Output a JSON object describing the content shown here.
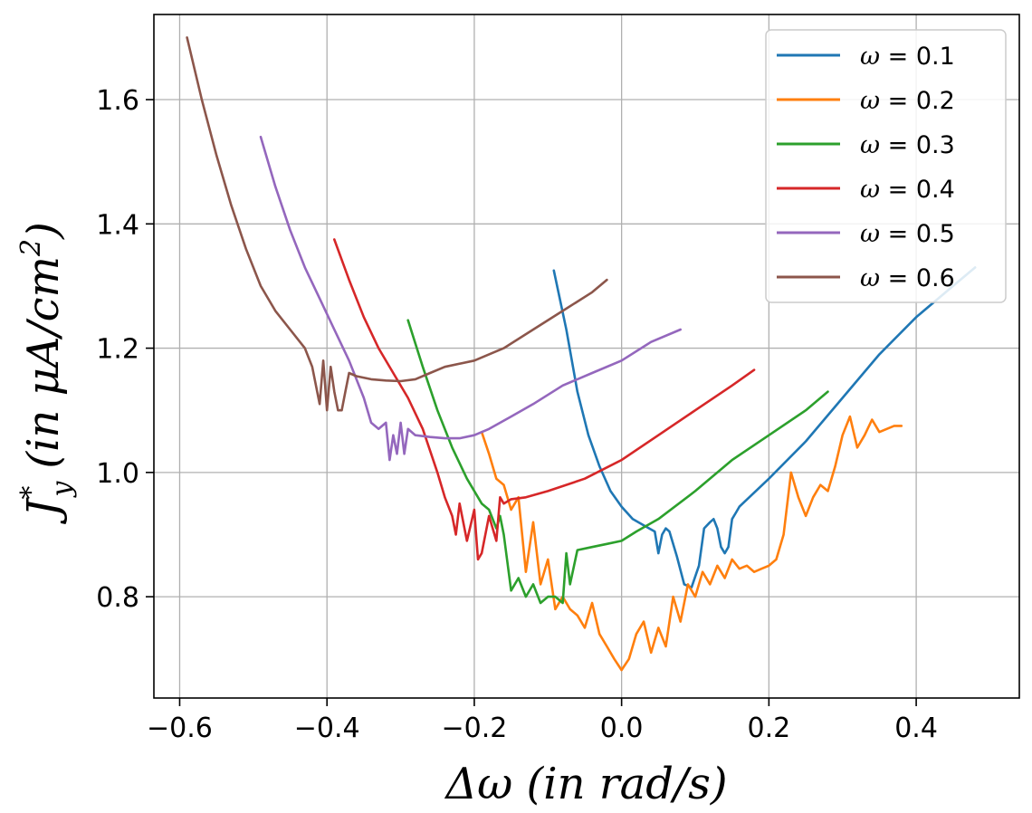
{
  "chart_data": {
    "type": "line",
    "title": "",
    "xlabel": "Δω (in rad/s)",
    "ylabel": "J*y (in μA/cm²)",
    "ylabel_parts": {
      "main": "J",
      "sup": "*",
      "sub": "y",
      "rest": "(in μA/cm",
      "exp": "2",
      "close": ")"
    },
    "xlim": [
      -0.635,
      0.54
    ],
    "ylim": [
      0.637,
      1.737
    ],
    "xticks": [
      -0.6,
      -0.4,
      -0.2,
      0.0,
      0.2,
      0.4
    ],
    "xtick_labels": [
      "−0.6",
      "−0.4",
      "−0.2",
      "0.0",
      "0.2",
      "0.4"
    ],
    "yticks": [
      0.8,
      1.0,
      1.2,
      1.4,
      1.6
    ],
    "ytick_labels": [
      "0.8",
      "1.0",
      "1.2",
      "1.4",
      "1.6"
    ],
    "grid": true,
    "legend_position": "top-right",
    "series": [
      {
        "name": "ω = 0.1",
        "label_prefix": "ω",
        "label_value": "= 0.1",
        "color": "#1f77b4",
        "x": [
          -0.092,
          -0.075,
          -0.06,
          -0.045,
          -0.03,
          -0.015,
          0.0,
          0.015,
          0.03,
          0.045,
          0.05,
          0.055,
          0.06,
          0.065,
          0.075,
          0.085,
          0.095,
          0.105,
          0.112,
          0.12,
          0.125,
          0.13,
          0.135,
          0.14,
          0.145,
          0.15,
          0.155,
          0.16,
          0.2,
          0.25,
          0.3,
          0.35,
          0.4,
          0.45,
          0.48
        ],
        "y": [
          1.325,
          1.23,
          1.13,
          1.06,
          1.01,
          0.97,
          0.945,
          0.925,
          0.915,
          0.905,
          0.87,
          0.9,
          0.91,
          0.905,
          0.865,
          0.82,
          0.815,
          0.85,
          0.91,
          0.92,
          0.925,
          0.91,
          0.88,
          0.87,
          0.88,
          0.925,
          0.935,
          0.945,
          0.99,
          1.05,
          1.12,
          1.19,
          1.25,
          1.3,
          1.33
        ]
      },
      {
        "name": "ω = 0.2",
        "label_prefix": "ω",
        "label_value": "= 0.2",
        "color": "#ff7f0e",
        "x": [
          -0.19,
          -0.18,
          -0.17,
          -0.16,
          -0.15,
          -0.14,
          -0.13,
          -0.12,
          -0.11,
          -0.1,
          -0.09,
          -0.08,
          -0.07,
          -0.06,
          -0.05,
          -0.04,
          -0.03,
          -0.02,
          -0.01,
          0.0,
          0.01,
          0.02,
          0.03,
          0.04,
          0.05,
          0.06,
          0.07,
          0.08,
          0.09,
          0.1,
          0.11,
          0.12,
          0.13,
          0.14,
          0.15,
          0.16,
          0.17,
          0.18,
          0.19,
          0.2,
          0.21,
          0.22,
          0.23,
          0.24,
          0.25,
          0.26,
          0.27,
          0.28,
          0.29,
          0.3,
          0.31,
          0.32,
          0.33,
          0.34,
          0.35,
          0.36,
          0.37,
          0.38
        ],
        "y": [
          1.065,
          1.03,
          0.99,
          0.98,
          0.94,
          0.96,
          0.84,
          0.92,
          0.82,
          0.86,
          0.78,
          0.8,
          0.78,
          0.77,
          0.75,
          0.79,
          0.74,
          0.72,
          0.7,
          0.682,
          0.7,
          0.74,
          0.76,
          0.71,
          0.75,
          0.72,
          0.8,
          0.76,
          0.82,
          0.8,
          0.84,
          0.82,
          0.85,
          0.83,
          0.86,
          0.845,
          0.85,
          0.84,
          0.845,
          0.85,
          0.86,
          0.9,
          1.0,
          0.96,
          0.93,
          0.96,
          0.98,
          0.97,
          1.01,
          1.06,
          1.09,
          1.04,
          1.06,
          1.085,
          1.065,
          1.07,
          1.075,
          1.075
        ]
      },
      {
        "name": "ω = 0.3",
        "label_prefix": "ω",
        "label_value": "= 0.3",
        "color": "#2ca02c",
        "x": [
          -0.29,
          -0.27,
          -0.25,
          -0.23,
          -0.21,
          -0.19,
          -0.18,
          -0.17,
          -0.165,
          -0.16,
          -0.15,
          -0.14,
          -0.13,
          -0.12,
          -0.11,
          -0.1,
          -0.09,
          -0.08,
          -0.075,
          -0.07,
          -0.06,
          -0.04,
          -0.02,
          0.0,
          0.02,
          0.05,
          0.1,
          0.15,
          0.2,
          0.25,
          0.28
        ],
        "y": [
          1.245,
          1.17,
          1.1,
          1.04,
          0.99,
          0.95,
          0.94,
          0.91,
          0.93,
          0.9,
          0.81,
          0.83,
          0.8,
          0.82,
          0.79,
          0.8,
          0.8,
          0.79,
          0.87,
          0.82,
          0.875,
          0.88,
          0.885,
          0.89,
          0.905,
          0.925,
          0.97,
          1.02,
          1.06,
          1.1,
          1.13
        ]
      },
      {
        "name": "ω = 0.4",
        "label_prefix": "ω",
        "label_value": "= 0.4",
        "color": "#d62728",
        "x": [
          -0.39,
          -0.37,
          -0.35,
          -0.33,
          -0.31,
          -0.29,
          -0.27,
          -0.25,
          -0.24,
          -0.23,
          -0.225,
          -0.22,
          -0.21,
          -0.2,
          -0.195,
          -0.19,
          -0.18,
          -0.17,
          -0.165,
          -0.16,
          -0.15,
          -0.13,
          -0.1,
          -0.05,
          0.0,
          0.05,
          0.1,
          0.15,
          0.18
        ],
        "y": [
          1.375,
          1.31,
          1.25,
          1.2,
          1.16,
          1.12,
          1.07,
          1.0,
          0.96,
          0.93,
          0.9,
          0.95,
          0.89,
          0.94,
          0.86,
          0.87,
          0.93,
          0.89,
          0.96,
          0.95,
          0.957,
          0.96,
          0.97,
          0.99,
          1.02,
          1.06,
          1.1,
          1.14,
          1.165
        ]
      },
      {
        "name": "ω = 0.5",
        "label_prefix": "ω",
        "label_value": "= 0.5",
        "color": "#9467bd",
        "x": [
          -0.49,
          -0.47,
          -0.45,
          -0.43,
          -0.41,
          -0.39,
          -0.37,
          -0.35,
          -0.34,
          -0.33,
          -0.32,
          -0.315,
          -0.31,
          -0.305,
          -0.3,
          -0.295,
          -0.29,
          -0.28,
          -0.26,
          -0.24,
          -0.22,
          -0.2,
          -0.18,
          -0.15,
          -0.12,
          -0.08,
          -0.04,
          0.0,
          0.04,
          0.08
        ],
        "y": [
          1.54,
          1.46,
          1.39,
          1.33,
          1.28,
          1.23,
          1.18,
          1.12,
          1.08,
          1.07,
          1.08,
          1.02,
          1.06,
          1.03,
          1.08,
          1.03,
          1.07,
          1.06,
          1.057,
          1.055,
          1.055,
          1.06,
          1.07,
          1.09,
          1.11,
          1.14,
          1.16,
          1.18,
          1.21,
          1.23
        ]
      },
      {
        "name": "ω = 0.6",
        "label_prefix": "ω",
        "label_value": "= 0.6",
        "color": "#8c564b",
        "x": [
          -0.59,
          -0.57,
          -0.55,
          -0.53,
          -0.51,
          -0.49,
          -0.47,
          -0.45,
          -0.43,
          -0.42,
          -0.41,
          -0.405,
          -0.4,
          -0.395,
          -0.39,
          -0.385,
          -0.38,
          -0.375,
          -0.37,
          -0.36,
          -0.34,
          -0.32,
          -0.3,
          -0.28,
          -0.26,
          -0.24,
          -0.2,
          -0.16,
          -0.12,
          -0.08,
          -0.04,
          -0.02
        ],
        "y": [
          1.7,
          1.6,
          1.51,
          1.43,
          1.36,
          1.3,
          1.26,
          1.23,
          1.2,
          1.17,
          1.11,
          1.18,
          1.1,
          1.17,
          1.13,
          1.1,
          1.1,
          1.13,
          1.16,
          1.155,
          1.15,
          1.148,
          1.147,
          1.15,
          1.16,
          1.17,
          1.18,
          1.2,
          1.23,
          1.26,
          1.29,
          1.31
        ]
      }
    ]
  }
}
